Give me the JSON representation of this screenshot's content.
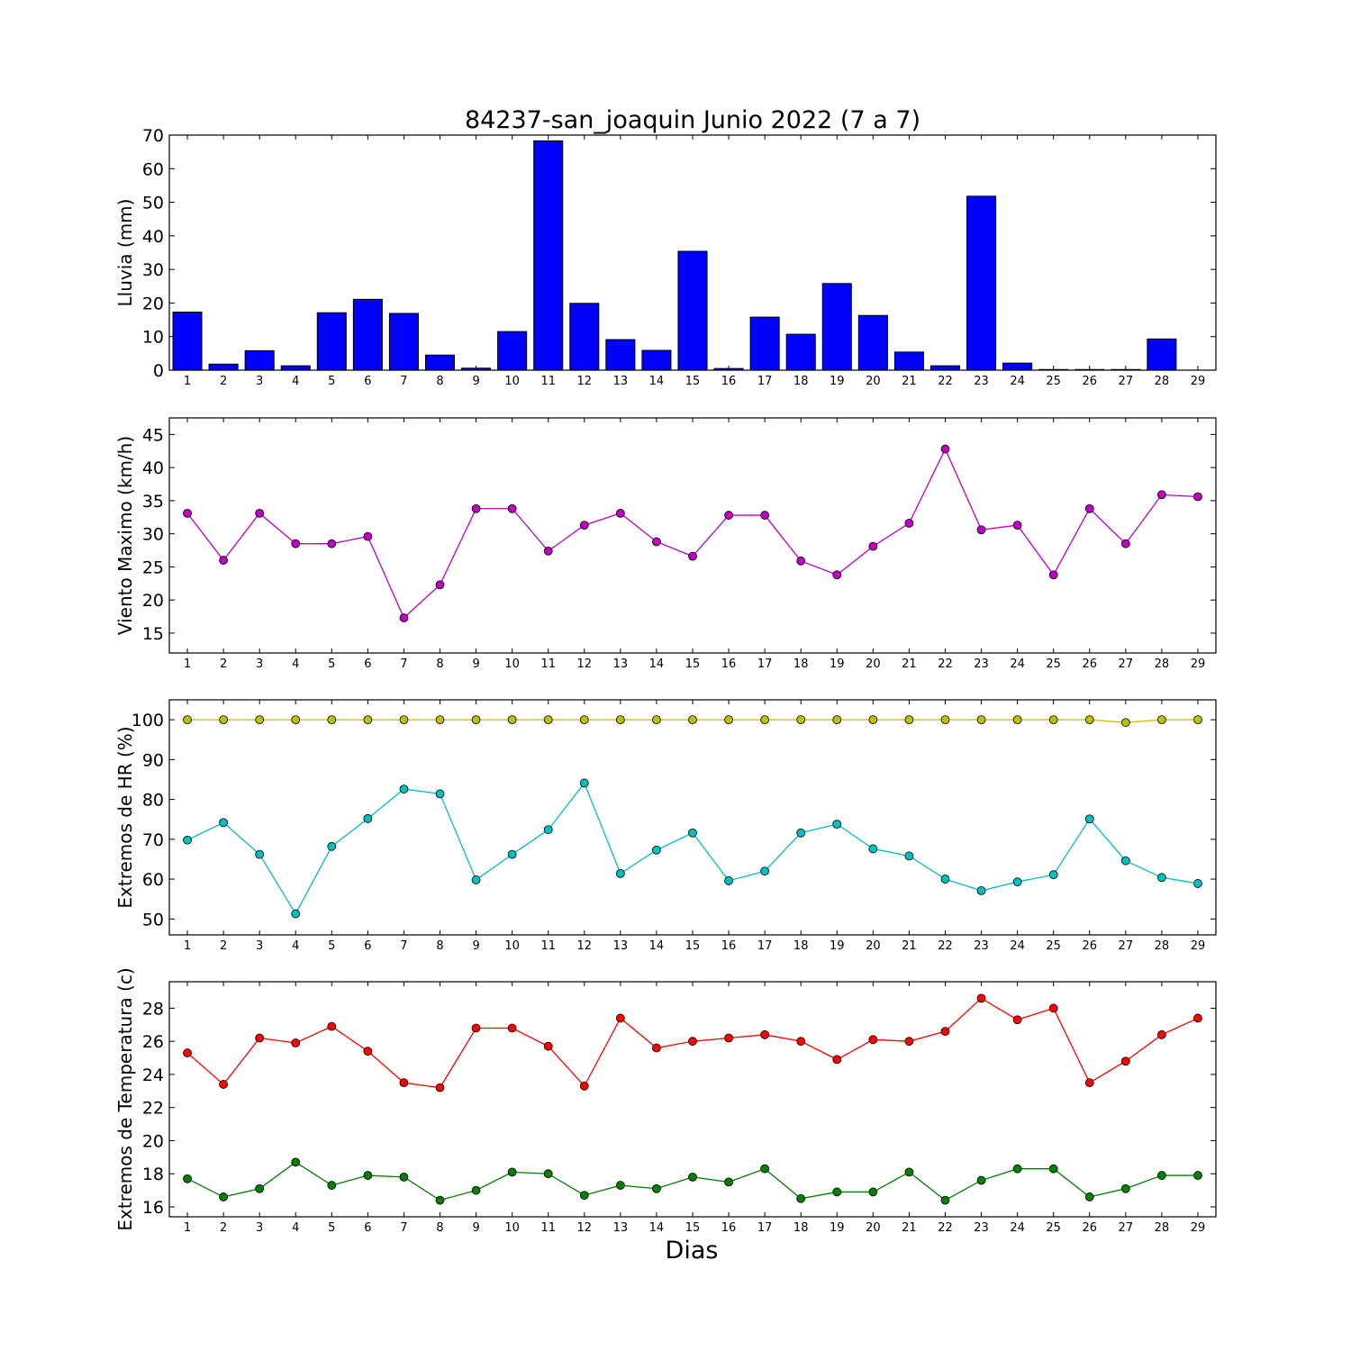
{
  "title": "84237-san_joaquin Junio 2022  (7 a 7)",
  "xlabel": "Dias",
  "chart_data": [
    {
      "type": "bar",
      "ylabel": "Lluvia (mm)",
      "ylim": [
        0,
        70
      ],
      "yticks": [
        0,
        10,
        20,
        30,
        40,
        50,
        60,
        70
      ],
      "x": [
        1,
        2,
        3,
        4,
        5,
        6,
        7,
        8,
        9,
        10,
        11,
        12,
        13,
        14,
        15,
        16,
        17,
        18,
        19,
        20,
        21,
        22,
        23,
        24,
        25,
        26,
        27,
        28,
        29
      ],
      "bar_color": "#0000ff",
      "values": [
        17.3,
        1.8,
        5.8,
        1.3,
        17.1,
        21.1,
        16.9,
        4.5,
        0.6,
        11.5,
        68.3,
        19.9,
        9.1,
        5.9,
        35.4,
        0.5,
        15.8,
        10.7,
        25.8,
        16.3,
        5.4,
        1.3,
        51.8,
        2.1,
        0.2,
        0.2,
        0.2,
        9.3,
        null
      ]
    },
    {
      "type": "line",
      "ylabel": "Viento Maximo (km/h)",
      "ylim": [
        12,
        47.5
      ],
      "yticks": [
        15,
        20,
        25,
        30,
        35,
        40,
        45
      ],
      "x": [
        1,
        2,
        3,
        4,
        5,
        6,
        7,
        8,
        9,
        10,
        11,
        12,
        13,
        14,
        15,
        16,
        17,
        18,
        19,
        20,
        21,
        22,
        23,
        24,
        25,
        26,
        27,
        28,
        29
      ],
      "series": [
        {
          "color": "#bf00bf",
          "values": [
            33.1,
            26.0,
            33.1,
            28.5,
            28.5,
            29.6,
            17.3,
            22.3,
            33.8,
            33.8,
            27.4,
            31.3,
            33.1,
            28.8,
            26.6,
            32.8,
            32.8,
            25.9,
            23.8,
            28.1,
            31.6,
            42.8,
            30.6,
            31.3,
            23.8,
            33.8,
            28.5,
            35.9,
            35.6
          ]
        }
      ]
    },
    {
      "type": "line",
      "ylabel": "Extremos de HR (%)",
      "ylim": [
        46,
        105
      ],
      "yticks": [
        50,
        60,
        70,
        80,
        90,
        100
      ],
      "x": [
        1,
        2,
        3,
        4,
        5,
        6,
        7,
        8,
        9,
        10,
        11,
        12,
        13,
        14,
        15,
        16,
        17,
        18,
        19,
        20,
        21,
        22,
        23,
        24,
        25,
        26,
        27,
        28,
        29
      ],
      "series": [
        {
          "color": "#bfbf00",
          "values": [
            100,
            100,
            100,
            100,
            100,
            100,
            100,
            100,
            100,
            100,
            100,
            100,
            100,
            100,
            100,
            100,
            100,
            100,
            100,
            100,
            100,
            100,
            100,
            100,
            100,
            100,
            99.3,
            100,
            100
          ]
        },
        {
          "color": "#00bfbf",
          "values": [
            69.8,
            74.2,
            66.2,
            51.3,
            68.2,
            75.2,
            82.6,
            81.4,
            59.8,
            66.2,
            72.4,
            84.1,
            61.4,
            67.3,
            71.6,
            59.6,
            62.0,
            71.6,
            73.8,
            67.6,
            65.8,
            60.0,
            57.1,
            59.3,
            61.1,
            75.1,
            64.6,
            60.4,
            58.9
          ]
        }
      ]
    },
    {
      "type": "line",
      "ylabel": "Extremos de Temperatura (c)",
      "ylim": [
        15.4,
        29.6
      ],
      "yticks": [
        16,
        18,
        20,
        22,
        24,
        26,
        28
      ],
      "x": [
        1,
        2,
        3,
        4,
        5,
        6,
        7,
        8,
        9,
        10,
        11,
        12,
        13,
        14,
        15,
        16,
        17,
        18,
        19,
        20,
        21,
        22,
        23,
        24,
        25,
        26,
        27,
        28,
        29
      ],
      "series": [
        {
          "color": "#ff0000",
          "values": [
            25.3,
            23.4,
            26.2,
            25.9,
            26.9,
            25.4,
            23.5,
            23.2,
            26.8,
            26.8,
            25.7,
            23.3,
            27.4,
            25.6,
            26.0,
            26.2,
            26.4,
            26.0,
            24.9,
            26.1,
            26.0,
            26.6,
            28.6,
            27.3,
            28.0,
            23.5,
            24.8,
            26.4,
            27.4
          ]
        },
        {
          "color": "#007f00",
          "values": [
            17.7,
            16.6,
            17.1,
            18.7,
            17.3,
            17.9,
            17.8,
            16.4,
            17.0,
            18.1,
            18.0,
            16.7,
            17.3,
            17.1,
            17.8,
            17.5,
            18.3,
            16.5,
            16.9,
            16.9,
            18.1,
            16.4,
            17.6,
            18.3,
            18.3,
            16.6,
            17.1,
            17.9,
            17.9
          ]
        }
      ]
    }
  ]
}
